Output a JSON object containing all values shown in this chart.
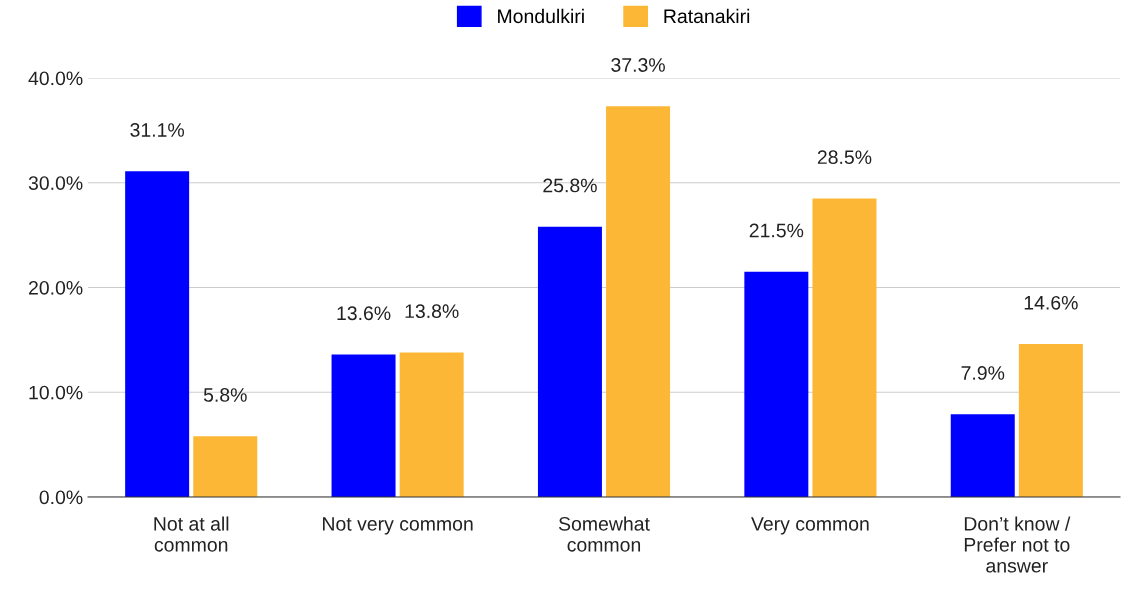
{
  "chart_data": {
    "type": "bar",
    "categories": [
      "Not at all\ncommon",
      "Not very common",
      "Somewhat\ncommon",
      "Very common",
      "Don’t know /\nPrefer not to\nanswer"
    ],
    "series": [
      {
        "name": "Mondulkiri",
        "color": "#0000ff",
        "values": [
          31.1,
          13.6,
          25.8,
          21.5,
          7.9
        ],
        "value_labels": [
          "31.1%",
          "13.6%",
          "25.8%",
          "21.5%",
          "7.9%"
        ]
      },
      {
        "name": "Ratanakiri",
        "color": "#fbb735",
        "values": [
          5.8,
          13.8,
          37.3,
          28.5,
          14.6
        ],
        "value_labels": [
          "5.8%",
          "13.8%",
          "37.3%",
          "28.5%",
          "14.6%"
        ]
      }
    ],
    "ylim": [
      0,
      40
    ],
    "yticks": [
      {
        "value": 0,
        "label": "0.0%"
      },
      {
        "value": 10,
        "label": "10.0%"
      },
      {
        "value": 20,
        "label": "20.0%"
      },
      {
        "value": 30,
        "label": "30.0%"
      },
      {
        "value": 40,
        "label": "40.0%"
      }
    ],
    "grid": "y",
    "legend": "top"
  }
}
